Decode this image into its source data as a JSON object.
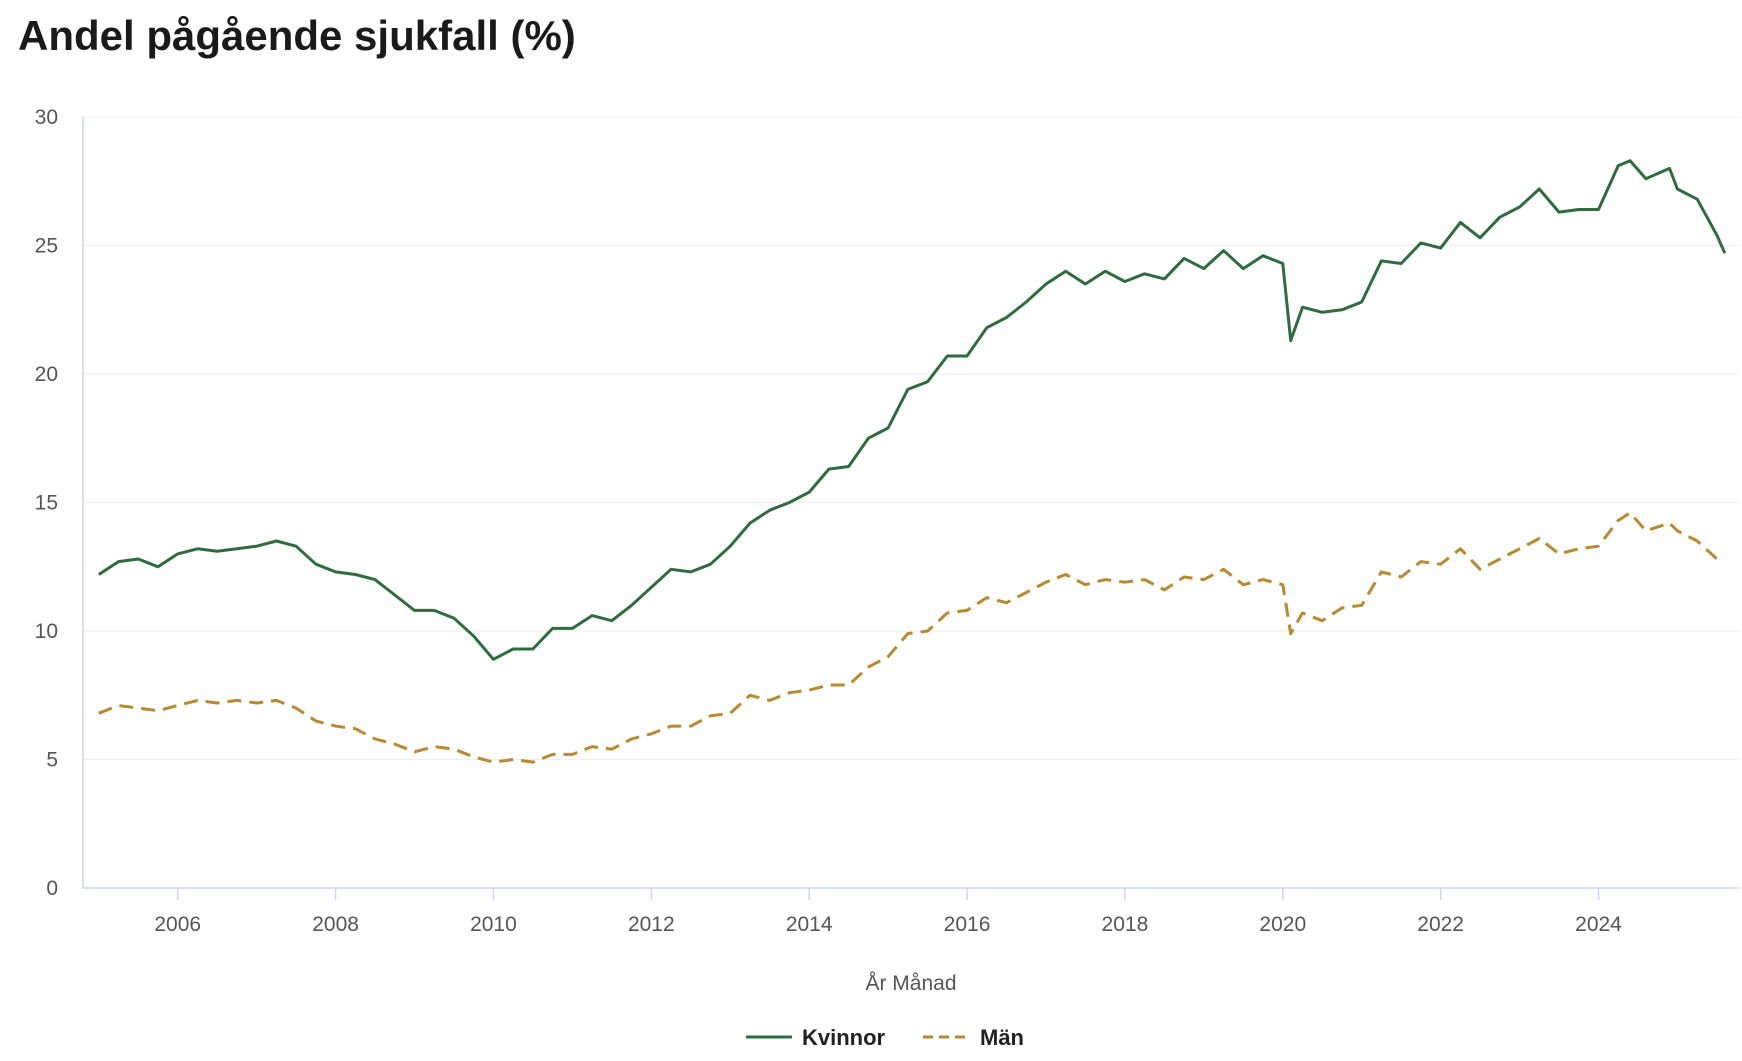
{
  "chart_data": {
    "type": "line",
    "title": "Andel pågående sjukfall (%)",
    "xlabel": "År Månad",
    "ylabel": "",
    "xlim": [
      2004.8,
      2025.78
    ],
    "ylim": [
      0,
      30
    ],
    "x_ticks": [
      "2006",
      "2008",
      "2010",
      "2012",
      "2014",
      "2016",
      "2018",
      "2020",
      "2022",
      "2024"
    ],
    "y_ticks": [
      "0",
      "5",
      "10",
      "15",
      "20",
      "25",
      "30"
    ],
    "grid": true,
    "legend_position": "bottom-center",
    "colors": {
      "Kvinnor": "#2e6b3f",
      "Män": "#b8892f"
    },
    "series": [
      {
        "name": "Kvinnor",
        "style": "solid",
        "x": [
          2005.0,
          2005.25,
          2005.5,
          2005.75,
          2006.0,
          2006.25,
          2006.5,
          2006.75,
          2007.0,
          2007.25,
          2007.5,
          2007.75,
          2008.0,
          2008.25,
          2008.5,
          2008.75,
          2009.0,
          2009.25,
          2009.5,
          2009.75,
          2010.0,
          2010.25,
          2010.5,
          2010.75,
          2011.0,
          2011.25,
          2011.5,
          2011.75,
          2012.0,
          2012.25,
          2012.5,
          2012.75,
          2013.0,
          2013.25,
          2013.5,
          2013.75,
          2014.0,
          2014.25,
          2014.5,
          2014.75,
          2015.0,
          2015.25,
          2015.5,
          2015.75,
          2016.0,
          2016.25,
          2016.5,
          2016.75,
          2017.0,
          2017.25,
          2017.5,
          2017.75,
          2018.0,
          2018.25,
          2018.5,
          2018.75,
          2019.0,
          2019.25,
          2019.5,
          2019.75,
          2020.0,
          2020.1,
          2020.25,
          2020.5,
          2020.75,
          2021.0,
          2021.25,
          2021.5,
          2021.75,
          2022.0,
          2022.25,
          2022.5,
          2022.75,
          2023.0,
          2023.25,
          2023.5,
          2023.75,
          2024.0,
          2024.25,
          2024.4,
          2024.6,
          2024.9,
          2025.0,
          2025.25,
          2025.5,
          2025.6
        ],
        "values": [
          12.2,
          12.7,
          12.8,
          12.5,
          13.0,
          13.2,
          13.1,
          13.2,
          13.3,
          13.5,
          13.3,
          12.6,
          12.3,
          12.2,
          12.0,
          11.4,
          10.8,
          10.8,
          10.5,
          9.8,
          8.9,
          9.3,
          9.3,
          10.1,
          10.1,
          10.6,
          10.4,
          11.0,
          11.7,
          12.4,
          12.3,
          12.6,
          13.3,
          14.2,
          14.7,
          15.0,
          15.4,
          16.3,
          16.4,
          17.5,
          17.9,
          19.4,
          19.7,
          20.7,
          20.7,
          21.8,
          22.2,
          22.8,
          23.5,
          24.0,
          23.5,
          24.0,
          23.6,
          23.9,
          23.7,
          24.5,
          24.1,
          24.8,
          24.1,
          24.6,
          24.3,
          21.3,
          22.6,
          22.4,
          22.5,
          22.8,
          24.4,
          24.3,
          25.1,
          24.9,
          25.9,
          25.3,
          26.1,
          26.5,
          27.2,
          26.3,
          26.4,
          26.4,
          28.1,
          28.3,
          27.6,
          28.0,
          27.2,
          26.8,
          25.4,
          24.7
        ]
      },
      {
        "name": "Män",
        "style": "dashed",
        "x": [
          2005.0,
          2005.25,
          2005.5,
          2005.75,
          2006.0,
          2006.25,
          2006.5,
          2006.75,
          2007.0,
          2007.25,
          2007.5,
          2007.75,
          2008.0,
          2008.25,
          2008.5,
          2008.75,
          2009.0,
          2009.25,
          2009.5,
          2009.75,
          2010.0,
          2010.25,
          2010.5,
          2010.75,
          2011.0,
          2011.25,
          2011.5,
          2011.75,
          2012.0,
          2012.25,
          2012.5,
          2012.75,
          2013.0,
          2013.25,
          2013.5,
          2013.75,
          2014.0,
          2014.25,
          2014.5,
          2014.75,
          2015.0,
          2015.25,
          2015.5,
          2015.75,
          2016.0,
          2016.25,
          2016.5,
          2016.75,
          2017.0,
          2017.25,
          2017.5,
          2017.75,
          2018.0,
          2018.25,
          2018.5,
          2018.75,
          2019.0,
          2019.25,
          2019.5,
          2019.75,
          2020.0,
          2020.1,
          2020.25,
          2020.5,
          2020.75,
          2021.0,
          2021.25,
          2021.5,
          2021.75,
          2022.0,
          2022.25,
          2022.5,
          2022.75,
          2023.0,
          2023.25,
          2023.5,
          2023.75,
          2024.0,
          2024.25,
          2024.4,
          2024.6,
          2024.9,
          2025.0,
          2025.25,
          2025.5
        ],
        "values": [
          6.8,
          7.1,
          7.0,
          6.9,
          7.1,
          7.3,
          7.2,
          7.3,
          7.2,
          7.3,
          7.0,
          6.5,
          6.3,
          6.2,
          5.8,
          5.6,
          5.3,
          5.5,
          5.4,
          5.1,
          4.9,
          5.0,
          4.9,
          5.2,
          5.2,
          5.5,
          5.4,
          5.8,
          6.0,
          6.3,
          6.3,
          6.7,
          6.8,
          7.5,
          7.3,
          7.6,
          7.7,
          7.9,
          7.9,
          8.6,
          9.0,
          9.9,
          10.0,
          10.7,
          10.8,
          11.3,
          11.1,
          11.5,
          11.9,
          12.2,
          11.8,
          12.0,
          11.9,
          12.0,
          11.6,
          12.1,
          12.0,
          12.4,
          11.8,
          12.0,
          11.8,
          9.9,
          10.7,
          10.4,
          10.9,
          11.0,
          12.3,
          12.1,
          12.7,
          12.6,
          13.2,
          12.4,
          12.8,
          13.2,
          13.6,
          13.0,
          13.2,
          13.3,
          14.3,
          14.6,
          13.9,
          14.2,
          13.9,
          13.5,
          12.8
        ]
      }
    ]
  }
}
